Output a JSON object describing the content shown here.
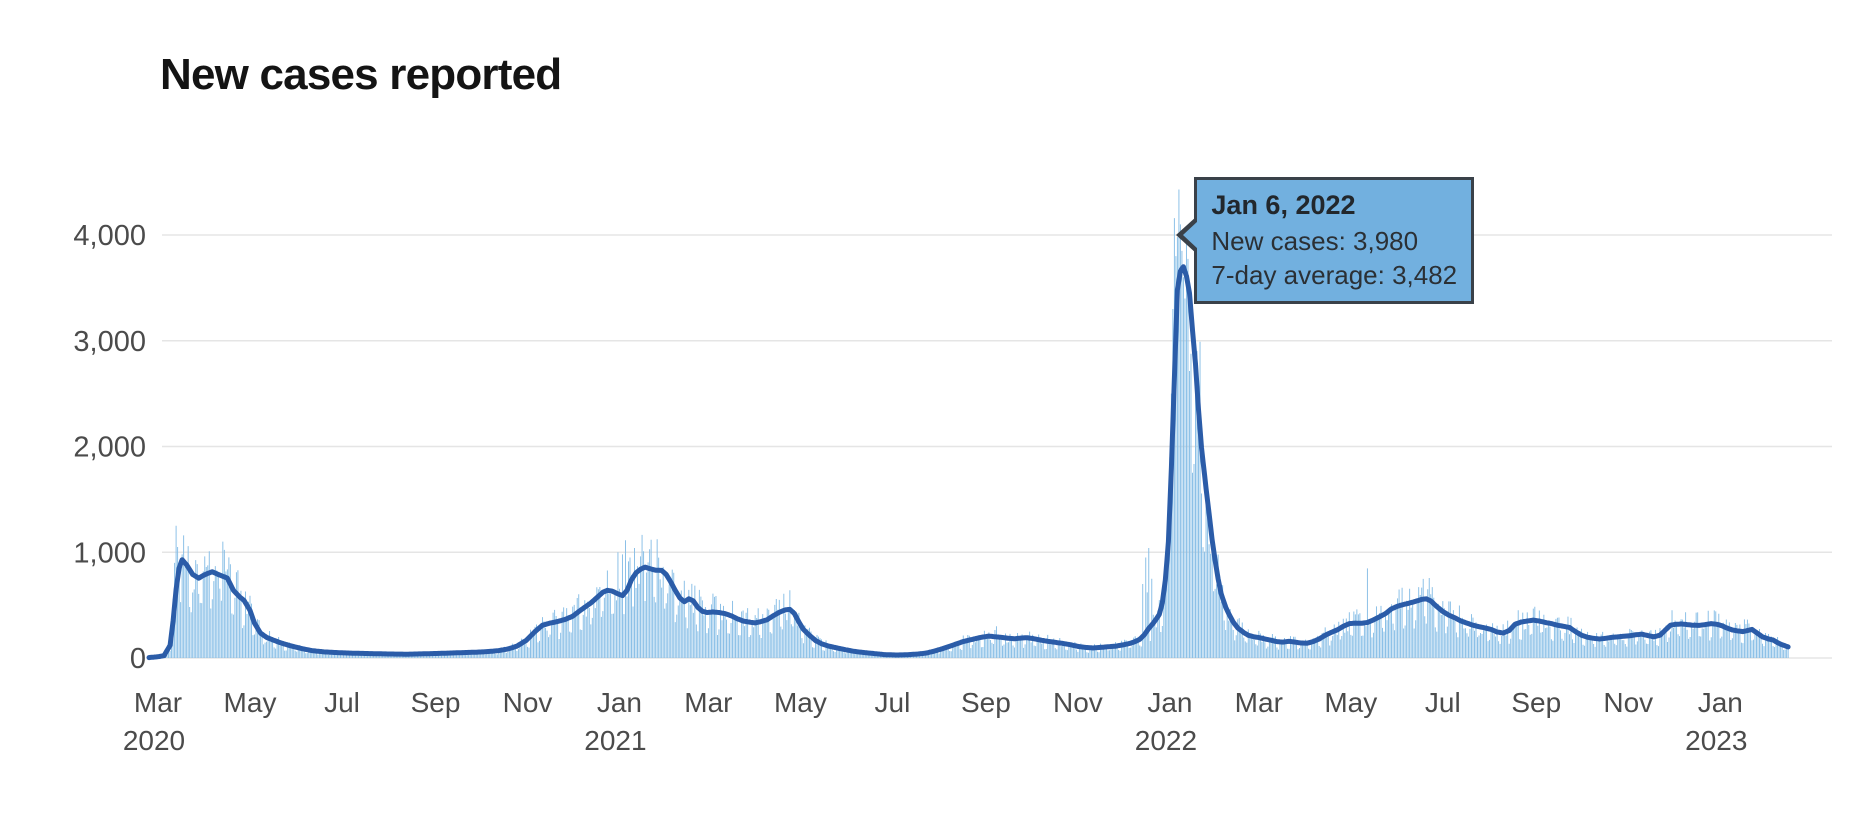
{
  "page": {
    "title": "New cases reported"
  },
  "chart_data": {
    "type": "bar",
    "title": "New cases reported",
    "legend": "none",
    "grid": "horizontal",
    "x_axis": {
      "epoch": "2020-03-01",
      "start_day_offset": -6,
      "end_day_offset": 1081,
      "ticks": [
        {
          "month": "Mar",
          "year": "2020",
          "d": 0
        },
        {
          "month": "May",
          "year": "",
          "d": 61
        },
        {
          "month": "Jul",
          "year": "",
          "d": 122
        },
        {
          "month": "Sep",
          "year": "",
          "d": 184
        },
        {
          "month": "Nov",
          "year": "",
          "d": 245
        },
        {
          "month": "Jan",
          "year": "2021",
          "d": 306
        },
        {
          "month": "Mar",
          "year": "",
          "d": 365
        },
        {
          "month": "May",
          "year": "",
          "d": 426
        },
        {
          "month": "Jul",
          "year": "",
          "d": 487
        },
        {
          "month": "Sep",
          "year": "",
          "d": 549
        },
        {
          "month": "Nov",
          "year": "",
          "d": 610
        },
        {
          "month": "Jan",
          "year": "2022",
          "d": 671
        },
        {
          "month": "Mar",
          "year": "",
          "d": 730
        },
        {
          "month": "May",
          "year": "",
          "d": 791
        },
        {
          "month": "Jul",
          "year": "",
          "d": 852
        },
        {
          "month": "Sep",
          "year": "",
          "d": 914
        },
        {
          "month": "Nov",
          "year": "",
          "d": 975
        },
        {
          "month": "Jan",
          "year": "2023",
          "d": 1036
        }
      ]
    },
    "y_axis": {
      "max": 4500,
      "ticks": [
        {
          "v": 0,
          "label": "0"
        },
        {
          "v": 1000,
          "label": "1,000"
        },
        {
          "v": 2000,
          "label": "2,000"
        },
        {
          "v": 3000,
          "label": "3,000"
        },
        {
          "v": 4000,
          "label": "4,000"
        }
      ]
    },
    "series": [
      {
        "name": "New cases",
        "type": "bar",
        "color": "#87BEE6"
      },
      {
        "name": "7-day average",
        "type": "line",
        "color": "#2B5CA8",
        "points": [
          [
            -6,
            4
          ],
          [
            0,
            12
          ],
          [
            4,
            22
          ],
          [
            8,
            120
          ],
          [
            10,
            350
          ],
          [
            12,
            650
          ],
          [
            14,
            850
          ],
          [
            16,
            930
          ],
          [
            19,
            880
          ],
          [
            23,
            790
          ],
          [
            27,
            755
          ],
          [
            30,
            780
          ],
          [
            33,
            800
          ],
          [
            36,
            815
          ],
          [
            40,
            790
          ],
          [
            46,
            755
          ],
          [
            50,
            640
          ],
          [
            54,
            580
          ],
          [
            57,
            545
          ],
          [
            61,
            450
          ],
          [
            64,
            330
          ],
          [
            68,
            235
          ],
          [
            72,
            195
          ],
          [
            76,
            172
          ],
          [
            82,
            140
          ],
          [
            88,
            115
          ],
          [
            95,
            90
          ],
          [
            102,
            70
          ],
          [
            110,
            58
          ],
          [
            120,
            50
          ],
          [
            130,
            45
          ],
          [
            140,
            42
          ],
          [
            152,
            38
          ],
          [
            165,
            36
          ],
          [
            178,
            40
          ],
          [
            192,
            46
          ],
          [
            205,
            52
          ],
          [
            216,
            58
          ],
          [
            225,
            68
          ],
          [
            232,
            85
          ],
          [
            238,
            112
          ],
          [
            244,
            165
          ],
          [
            250,
            250
          ],
          [
            255,
            310
          ],
          [
            260,
            330
          ],
          [
            265,
            345
          ],
          [
            270,
            365
          ],
          [
            275,
            395
          ],
          [
            281,
            460
          ],
          [
            287,
            520
          ],
          [
            291,
            570
          ],
          [
            295,
            622
          ],
          [
            298,
            640
          ],
          [
            301,
            633
          ],
          [
            305,
            607
          ],
          [
            308,
            590
          ],
          [
            311,
            640
          ],
          [
            314,
            740
          ],
          [
            317,
            805
          ],
          [
            320,
            840
          ],
          [
            323,
            860
          ],
          [
            326,
            845
          ],
          [
            330,
            830
          ],
          [
            334,
            828
          ],
          [
            337,
            790
          ],
          [
            340,
            720
          ],
          [
            343,
            640
          ],
          [
            346,
            568
          ],
          [
            349,
            532
          ],
          [
            352,
            560
          ],
          [
            355,
            540
          ],
          [
            358,
            478
          ],
          [
            361,
            442
          ],
          [
            364,
            430
          ],
          [
            368,
            436
          ],
          [
            372,
            430
          ],
          [
            376,
            420
          ],
          [
            380,
            400
          ],
          [
            384,
            372
          ],
          [
            388,
            350
          ],
          [
            392,
            340
          ],
          [
            396,
            332
          ],
          [
            400,
            345
          ],
          [
            404,
            362
          ],
          [
            408,
            400
          ],
          [
            412,
            432
          ],
          [
            416,
            455
          ],
          [
            419,
            460
          ],
          [
            422,
            420
          ],
          [
            425,
            340
          ],
          [
            428,
            270
          ],
          [
            432,
            215
          ],
          [
            436,
            165
          ],
          [
            440,
            135
          ],
          [
            445,
            112
          ],
          [
            450,
            96
          ],
          [
            456,
            78
          ],
          [
            462,
            62
          ],
          [
            468,
            52
          ],
          [
            475,
            42
          ],
          [
            482,
            32
          ],
          [
            490,
            28
          ],
          [
            497,
            31
          ],
          [
            504,
            38
          ],
          [
            510,
            48
          ],
          [
            516,
            70
          ],
          [
            522,
            96
          ],
          [
            528,
            126
          ],
          [
            534,
            156
          ],
          [
            540,
            176
          ],
          [
            546,
            196
          ],
          [
            551,
            207
          ],
          [
            556,
            200
          ],
          [
            560,
            194
          ],
          [
            564,
            186
          ],
          [
            568,
            182
          ],
          [
            572,
            188
          ],
          [
            576,
            192
          ],
          [
            580,
            184
          ],
          [
            585,
            170
          ],
          [
            590,
            158
          ],
          [
            595,
            148
          ],
          [
            600,
            138
          ],
          [
            605,
            126
          ],
          [
            610,
            110
          ],
          [
            615,
            100
          ],
          [
            620,
            95
          ],
          [
            625,
            100
          ],
          [
            630,
            106
          ],
          [
            635,
            112
          ],
          [
            640,
            124
          ],
          [
            645,
            140
          ],
          [
            648,
            156
          ],
          [
            651,
            176
          ],
          [
            654,
            218
          ],
          [
            657,
            280
          ],
          [
            660,
            330
          ],
          [
            662,
            370
          ],
          [
            664,
            412
          ],
          [
            666,
            520
          ],
          [
            668,
            735
          ],
          [
            670,
            1100
          ],
          [
            672,
            1800
          ],
          [
            674,
            2650
          ],
          [
            676,
            3482
          ],
          [
            678,
            3660
          ],
          [
            680,
            3700
          ],
          [
            682,
            3610
          ],
          [
            684,
            3450
          ],
          [
            686,
            3100
          ],
          [
            688,
            2780
          ],
          [
            690,
            2350
          ],
          [
            692,
            1990
          ],
          [
            695,
            1600
          ],
          [
            697,
            1365
          ],
          [
            699,
            1120
          ],
          [
            701,
            924
          ],
          [
            703,
            750
          ],
          [
            705,
            610
          ],
          [
            708,
            480
          ],
          [
            710,
            420
          ],
          [
            713,
            340
          ],
          [
            716,
            285
          ],
          [
            720,
            240
          ],
          [
            723,
            215
          ],
          [
            727,
            200
          ],
          [
            730,
            194
          ],
          [
            734,
            180
          ],
          [
            738,
            168
          ],
          [
            742,
            155
          ],
          [
            746,
            150
          ],
          [
            750,
            158
          ],
          [
            754,
            150
          ],
          [
            758,
            142
          ],
          [
            762,
            140
          ],
          [
            766,
            155
          ],
          [
            770,
            180
          ],
          [
            774,
            215
          ],
          [
            778,
            242
          ],
          [
            782,
            266
          ],
          [
            786,
            300
          ],
          [
            790,
            325
          ],
          [
            794,
            330
          ],
          [
            798,
            328
          ],
          [
            802,
            336
          ],
          [
            806,
            360
          ],
          [
            810,
            390
          ],
          [
            814,
            420
          ],
          [
            818,
            465
          ],
          [
            822,
            490
          ],
          [
            826,
            506
          ],
          [
            830,
            520
          ],
          [
            834,
            536
          ],
          [
            838,
            554
          ],
          [
            841,
            560
          ],
          [
            844,
            540
          ],
          [
            848,
            486
          ],
          [
            852,
            440
          ],
          [
            856,
            405
          ],
          [
            860,
            380
          ],
          [
            864,
            350
          ],
          [
            868,
            330
          ],
          [
            872,
            310
          ],
          [
            876,
            296
          ],
          [
            880,
            285
          ],
          [
            884,
            270
          ],
          [
            888,
            246
          ],
          [
            892,
            236
          ],
          [
            896,
            260
          ],
          [
            900,
            320
          ],
          [
            904,
            340
          ],
          [
            908,
            350
          ],
          [
            912,
            358
          ],
          [
            916,
            350
          ],
          [
            920,
            336
          ],
          [
            924,
            325
          ],
          [
            928,
            310
          ],
          [
            932,
            300
          ],
          [
            936,
            288
          ],
          [
            940,
            250
          ],
          [
            944,
            216
          ],
          [
            948,
            196
          ],
          [
            952,
            186
          ],
          [
            956,
            180
          ],
          [
            960,
            186
          ],
          [
            964,
            195
          ],
          [
            968,
            200
          ],
          [
            972,
            206
          ],
          [
            976,
            210
          ],
          [
            980,
            220
          ],
          [
            984,
            225
          ],
          [
            988,
            212
          ],
          [
            992,
            200
          ],
          [
            996,
            216
          ],
          [
            1000,
            270
          ],
          [
            1003,
            310
          ],
          [
            1006,
            318
          ],
          [
            1010,
            322
          ],
          [
            1014,
            316
          ],
          [
            1018,
            310
          ],
          [
            1022,
            308
          ],
          [
            1026,
            316
          ],
          [
            1030,
            325
          ],
          [
            1034,
            318
          ],
          [
            1037,
            305
          ],
          [
            1040,
            286
          ],
          [
            1044,
            265
          ],
          [
            1048,
            255
          ],
          [
            1051,
            250
          ],
          [
            1054,
            260
          ],
          [
            1057,
            270
          ],
          [
            1060,
            240
          ],
          [
            1064,
            200
          ],
          [
            1068,
            180
          ],
          [
            1071,
            170
          ],
          [
            1074,
            145
          ],
          [
            1077,
            125
          ],
          [
            1081,
            105
          ]
        ]
      }
    ],
    "bar_overrides": [
      [
        10,
        560
      ],
      [
        11,
        900
      ],
      [
        12,
        1250
      ],
      [
        13,
        1050
      ],
      [
        14,
        760
      ],
      [
        16,
        980
      ],
      [
        18,
        900
      ],
      [
        43,
        1100
      ],
      [
        305,
        1000
      ],
      [
        308,
        980
      ],
      [
        310,
        1113
      ],
      [
        313,
        950
      ],
      [
        316,
        1040
      ],
      [
        322,
        1010
      ],
      [
        556,
        300
      ],
      [
        653,
        700
      ],
      [
        655,
        950
      ],
      [
        656,
        620
      ],
      [
        657,
        1040
      ],
      [
        659,
        750
      ],
      [
        669,
        1000
      ],
      [
        670,
        1350
      ],
      [
        671,
        1900
      ],
      [
        672,
        2500
      ],
      [
        673,
        3300
      ],
      [
        674,
        4160
      ],
      [
        675,
        3800
      ],
      [
        676,
        3980
      ],
      [
        677,
        4430
      ],
      [
        678,
        4100
      ],
      [
        679,
        3850
      ],
      [
        680,
        3600
      ],
      [
        681,
        3400
      ],
      [
        802,
        848
      ],
      [
        836,
        670
      ],
      [
        842,
        650
      ],
      [
        1004,
        452
      ],
      [
        1052,
        365
      ]
    ],
    "render_hints": {
      "grid_color": "#E5E5E5",
      "text_color": "#4B4B4B",
      "bar_width": 0.95,
      "line_width": 5,
      "weekend_dip": true,
      "noise": 0.62
    },
    "tooltip": {
      "heading": "Jan 6, 2022",
      "rows": [
        "New cases: 3,980",
        "7-day average: 3,482"
      ],
      "anchor_day": 676,
      "anchor_value": 3980,
      "bg_color": "#72B0DF",
      "border_color": "#3A4149"
    }
  }
}
